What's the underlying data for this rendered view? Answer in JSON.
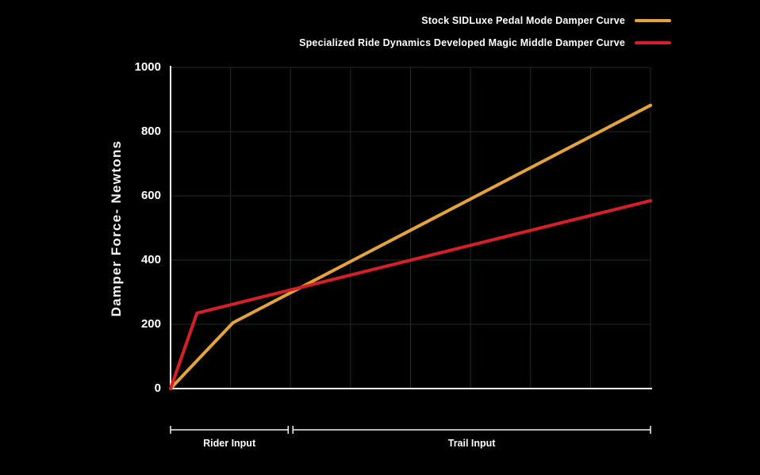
{
  "colors": {
    "background": "#000000",
    "axis": "#f2f2f2",
    "grid": "#1d2e27",
    "text": "#ffffff"
  },
  "chart_data": {
    "type": "line",
    "title": "",
    "xlabel": "",
    "ylabel": "Damper Force- Newtons",
    "xlim": [
      0,
      100
    ],
    "ylim": [
      0,
      1000
    ],
    "yticks": [
      0,
      200,
      400,
      600,
      800,
      1000
    ],
    "x_gridline_count": 8,
    "grid": true,
    "legend_position": "top-right",
    "series": [
      {
        "name": "Stock SIDLuxe Pedal Mode Damper Curve",
        "color": "#e4a33c",
        "points": [
          [
            0,
            0
          ],
          [
            13,
            205
          ],
          [
            100,
            882
          ]
        ]
      },
      {
        "name": "Specialized Ride Dynamics Developed Magic Middle Damper Curve",
        "color": "#d62027",
        "points": [
          [
            0,
            0
          ],
          [
            5.5,
            235
          ],
          [
            100,
            585
          ]
        ]
      }
    ],
    "x_annotations": [
      {
        "label": "Rider Input",
        "from": 0,
        "to": 25
      },
      {
        "label": "Trail Input",
        "from": 25,
        "to": 100
      }
    ]
  }
}
